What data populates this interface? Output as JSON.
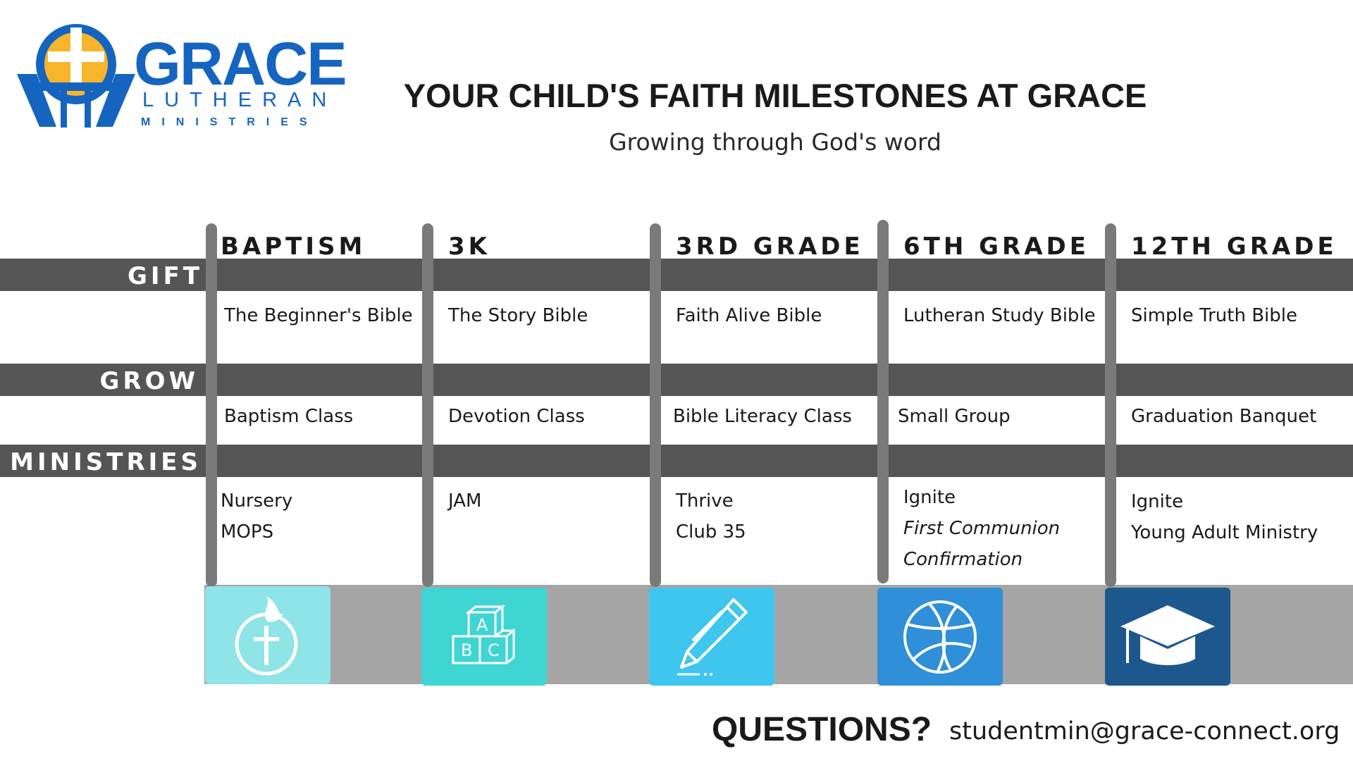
{
  "logo": {
    "grace": "GRACE",
    "lutheran": "LUTHERAN",
    "ministries": "MINISTRIES",
    "colors": {
      "blue": "#1565c0",
      "gold": "#f7b52c"
    }
  },
  "header": {
    "title": "YOUR CHILD'S FAITH MILESTONES AT GRACE",
    "subtitle": "Growing through God's word"
  },
  "rows": {
    "gift": "GIFT",
    "grow": "GROW",
    "ministries": "MINISTRIES"
  },
  "stages": [
    {
      "name": "BAPTISM",
      "gift": "The Beginner's Bible",
      "grow": "Baptism Class",
      "ministries": [
        "Nursery",
        "MOPS"
      ],
      "icon": "baptism-cross-flame-icon",
      "color": "#8ee4e6"
    },
    {
      "name": "3K",
      "gift": "The Story Bible",
      "grow": "Devotion Class",
      "ministries": [
        "JAM"
      ],
      "icon": "abc-blocks-icon",
      "color": "#3fd5d3"
    },
    {
      "name": "3RD GRADE",
      "gift": "Faith Alive Bible",
      "grow": "Bible Literacy Class",
      "ministries": [
        "Thrive",
        "Club 35"
      ],
      "icon": "pencil-icon",
      "color": "#3ec6ee"
    },
    {
      "name": "6TH GRADE",
      "gift": "Lutheran Study Bible",
      "grow": "Small Group",
      "ministries": [
        "Ignite",
        "First Communion",
        "Confirmation"
      ],
      "icon": "basketball-icon",
      "color": "#2f8fd8"
    },
    {
      "name": "12TH GRADE",
      "gift": "Simple Truth Bible",
      "grow": "Graduation Banquet",
      "ministries": [
        "Ignite",
        "Young Adult Ministry"
      ],
      "icon": "graduation-cap-icon",
      "color": "#1c578e"
    }
  ],
  "footer": {
    "questions": "QUESTIONS?",
    "email": "studentmin@grace-connect.org"
  }
}
